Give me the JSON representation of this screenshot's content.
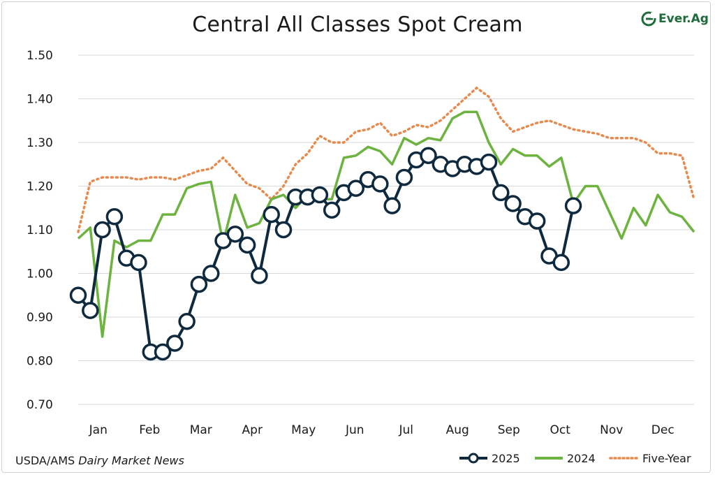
{
  "colors": {
    "c2025": "#0f2a3f",
    "c2024": "#6db33f",
    "cfive": "#e8894d",
    "grid": "#d9d9d9",
    "logo": "#1f6b3a"
  },
  "logo": {
    "text": "Ever.Ag",
    "icon": "ever-ag-logo-icon"
  },
  "source": {
    "prefix": "USDA/AMS ",
    "italic": "Dairy Market News"
  },
  "chart_data": {
    "type": "line",
    "title": "Central All Classes Spot Cream",
    "xlabel": "",
    "ylabel": "",
    "ylim": [
      0.7,
      1.5
    ],
    "yticks": [
      "0.70",
      "0.80",
      "0.90",
      "1.00",
      "1.10",
      "1.20",
      "1.30",
      "1.40",
      "1.50"
    ],
    "categories": [
      "Jan",
      "Feb",
      "Mar",
      "Apr",
      "May",
      "Jun",
      "Jul",
      "Aug",
      "Sep",
      "Oct",
      "Nov",
      "Dec"
    ],
    "x_unit": "week of year (1-52)",
    "grid": "horizontal",
    "legend_position": "bottom-right",
    "series": [
      {
        "name": "2025",
        "style": "solid line with hollow circle markers",
        "x": [
          1,
          2,
          3,
          4,
          5,
          6,
          7,
          8,
          9,
          10,
          11,
          12,
          13,
          14,
          15,
          16,
          17,
          18,
          19,
          20,
          21,
          22,
          23,
          24,
          25,
          26,
          27,
          28,
          29,
          30,
          31,
          32,
          33,
          34,
          35,
          36,
          37,
          38,
          39,
          40,
          41,
          42
        ],
        "values": [
          0.95,
          0.915,
          1.1,
          1.13,
          1.035,
          1.025,
          0.82,
          0.82,
          0.84,
          0.89,
          0.975,
          1.0,
          1.075,
          1.09,
          1.065,
          0.995,
          1.135,
          1.1,
          1.175,
          1.175,
          1.18,
          1.145,
          1.185,
          1.195,
          1.215,
          1.205,
          1.155,
          1.22,
          1.26,
          1.27,
          1.25,
          1.24,
          1.25,
          1.245,
          1.255,
          1.185,
          1.16,
          1.13,
          1.12,
          1.04,
          1.025,
          1.155
        ]
      },
      {
        "name": "2024",
        "style": "solid line",
        "x": [
          1,
          2,
          3,
          4,
          5,
          6,
          7,
          8,
          9,
          10,
          11,
          12,
          13,
          14,
          15,
          16,
          17,
          18,
          19,
          20,
          21,
          22,
          23,
          24,
          25,
          26,
          27,
          28,
          29,
          30,
          31,
          32,
          33,
          34,
          35,
          36,
          37,
          38,
          39,
          40,
          41,
          42,
          43,
          44,
          45,
          46,
          47,
          48,
          49,
          50,
          51,
          52
        ],
        "values": [
          1.08,
          1.105,
          0.855,
          1.075,
          1.06,
          1.075,
          1.075,
          1.135,
          1.135,
          1.195,
          1.205,
          1.21,
          1.07,
          1.18,
          1.105,
          1.115,
          1.17,
          1.18,
          1.15,
          1.18,
          1.17,
          1.17,
          1.265,
          1.27,
          1.29,
          1.28,
          1.25,
          1.31,
          1.295,
          1.31,
          1.305,
          1.355,
          1.37,
          1.37,
          1.3,
          1.25,
          1.285,
          1.27,
          1.27,
          1.245,
          1.265,
          1.16,
          1.2,
          1.2,
          1.14,
          1.08,
          1.15,
          1.11,
          1.18,
          1.14,
          1.13,
          1.095
        ]
      },
      {
        "name": "Five-Year",
        "style": "dotted line",
        "x": [
          1,
          2,
          3,
          4,
          5,
          6,
          7,
          8,
          9,
          10,
          11,
          12,
          13,
          14,
          15,
          16,
          17,
          18,
          19,
          20,
          21,
          22,
          23,
          24,
          25,
          26,
          27,
          28,
          29,
          30,
          31,
          32,
          33,
          34,
          35,
          36,
          37,
          38,
          39,
          40,
          41,
          42,
          43,
          44,
          45,
          46,
          47,
          48,
          49,
          50,
          51,
          52
        ],
        "values": [
          1.095,
          1.21,
          1.22,
          1.22,
          1.22,
          1.215,
          1.22,
          1.22,
          1.215,
          1.225,
          1.235,
          1.24,
          1.265,
          1.235,
          1.205,
          1.195,
          1.17,
          1.2,
          1.25,
          1.275,
          1.315,
          1.3,
          1.3,
          1.325,
          1.33,
          1.345,
          1.315,
          1.325,
          1.34,
          1.335,
          1.35,
          1.375,
          1.4,
          1.425,
          1.405,
          1.355,
          1.325,
          1.335,
          1.345,
          1.35,
          1.34,
          1.33,
          1.325,
          1.32,
          1.31,
          1.31,
          1.31,
          1.3,
          1.275,
          1.275,
          1.27,
          1.17
        ]
      }
    ]
  }
}
